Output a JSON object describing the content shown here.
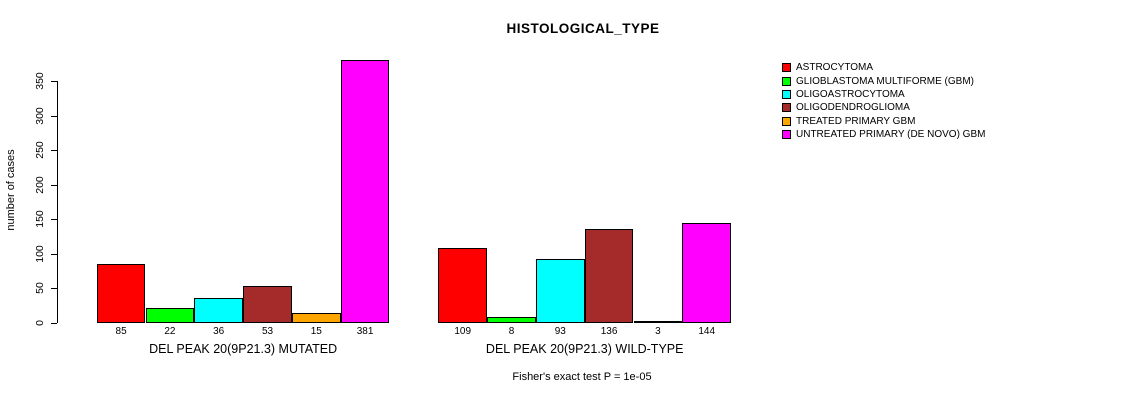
{
  "chart_data": {
    "type": "bar",
    "title": "HISTOLOGICAL_TYPE",
    "ylabel": "number of cases",
    "xlabel": "",
    "ylim": [
      0,
      350
    ],
    "yticks": [
      0,
      50,
      100,
      150,
      200,
      250,
      300,
      350
    ],
    "grid": false,
    "legend_position": "right",
    "annotation": "Fisher's exact test P = 1e-05",
    "groups": [
      "DEL PEAK 20(9P21.3) MUTATED",
      "DEL PEAK 20(9P21.3) WILD-TYPE"
    ],
    "series": [
      {
        "name": "ASTROCYTOMA",
        "color": "#FF0000",
        "values": [
          85,
          109
        ]
      },
      {
        "name": "GLIOBLASTOMA MULTIFORME (GBM)",
        "color": "#00FF00",
        "values": [
          22,
          8
        ]
      },
      {
        "name": "OLIGOASTROCYTOMA",
        "color": "#00FFFF",
        "values": [
          36,
          93
        ]
      },
      {
        "name": "OLIGODENDROGLIOMA",
        "color": "#A52A2A",
        "values": [
          53,
          136
        ]
      },
      {
        "name": "TREATED PRIMARY GBM",
        "color": "#FFA500",
        "values": [
          15,
          3
        ]
      },
      {
        "name": "UNTREATED PRIMARY (DE NOVO) GBM",
        "color": "#FF00FF",
        "values": [
          381,
          144
        ]
      }
    ],
    "bar_value_labels": {
      "mutated": [
        85,
        22,
        36,
        53,
        15,
        381
      ],
      "wild_type": [
        109,
        8,
        93,
        136,
        3,
        144
      ]
    },
    "colors": {
      "background": "#FFFFFF",
      "axis": "#000000",
      "text": "#000000"
    }
  }
}
